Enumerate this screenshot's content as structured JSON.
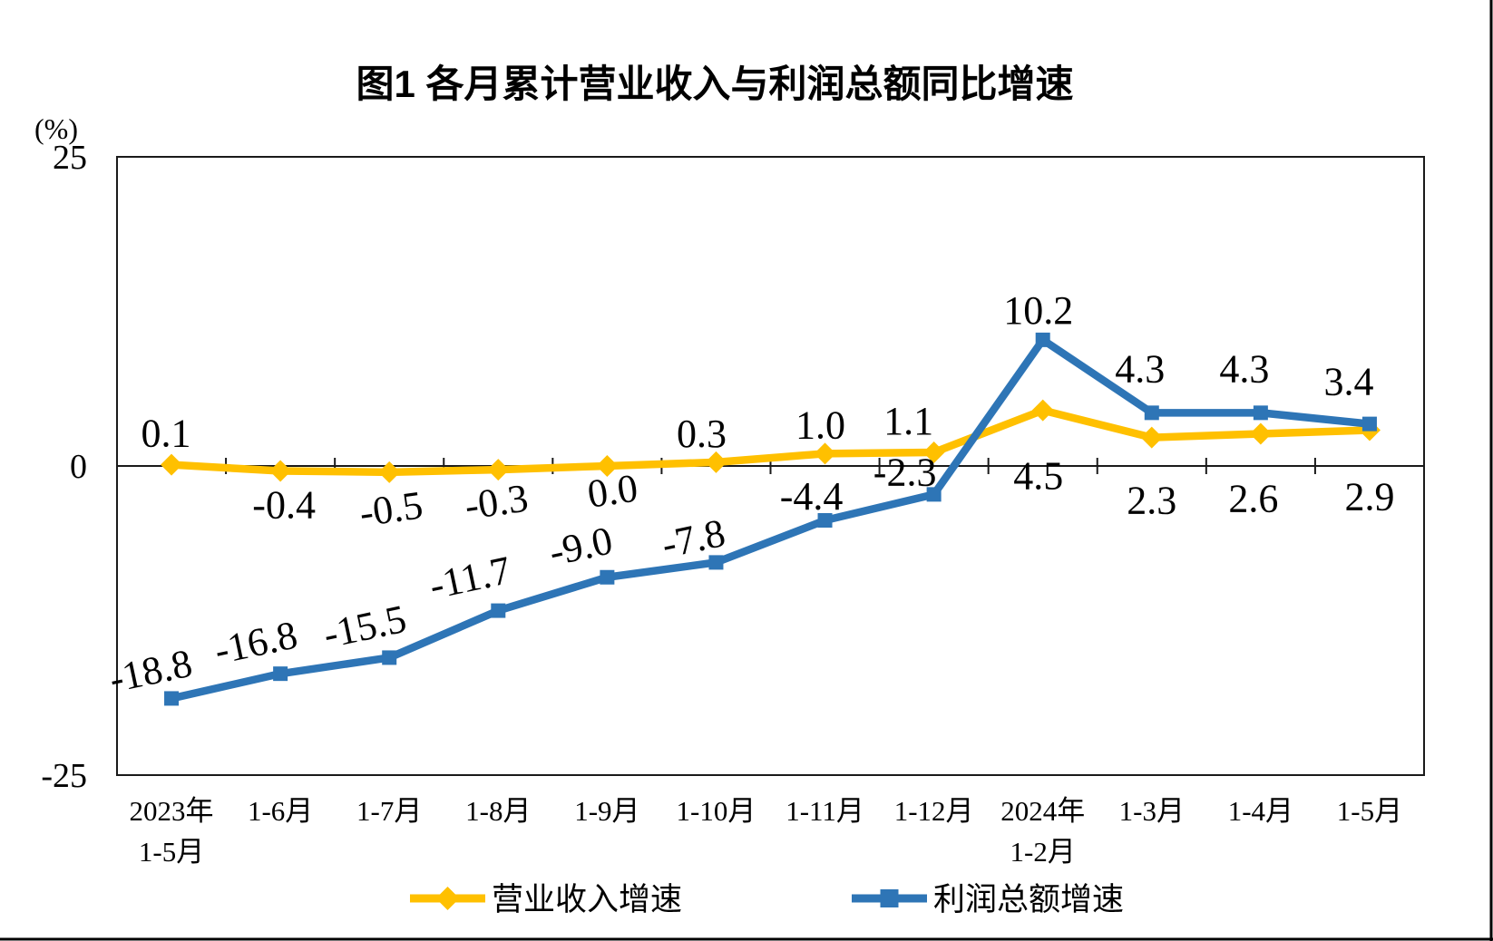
{
  "title": "图1  各月累计营业收入与利润总额同比增速",
  "axis": {
    "unit_label": "(%)",
    "y_tick_labels": [
      "25",
      "0",
      "-25"
    ]
  },
  "legend": {
    "items": [
      "营业收入增速",
      "利润总额增速"
    ]
  },
  "chart_data": {
    "type": "line",
    "title": "图1  各月累计营业收入与利润总额同比增速",
    "xlabel": "",
    "ylabel": "(%)",
    "ylim": [
      -25,
      25
    ],
    "y_ticks": [
      {
        "value": 25,
        "label": "25"
      },
      {
        "value": 0,
        "label": "0"
      },
      {
        "value": -25,
        "label": "-25"
      }
    ],
    "grid": false,
    "legend_position": "bottom",
    "categories": [
      [
        "2023年",
        "1-5月"
      ],
      [
        "1-6月"
      ],
      [
        "1-7月"
      ],
      [
        "1-8月"
      ],
      [
        "1-9月"
      ],
      [
        "1-10月"
      ],
      [
        "1-11月"
      ],
      [
        "1-12月"
      ],
      [
        "2024年",
        "1-2月"
      ],
      [
        "1-3月"
      ],
      [
        "1-4月"
      ],
      [
        "1-5月"
      ]
    ],
    "series": [
      {
        "name": "营业收入增速",
        "color": "#FFC000",
        "marker": "diamond",
        "values": [
          0.1,
          -0.4,
          -0.5,
          -0.3,
          0.0,
          0.3,
          1.0,
          1.1,
          4.5,
          2.3,
          2.6,
          2.9
        ],
        "labels": [
          "0.1",
          "-0.4",
          "-0.5",
          "-0.3",
          "0.0",
          "0.3",
          "1.0",
          "1.1",
          "4.5",
          "2.3",
          "2.6",
          "2.9"
        ]
      },
      {
        "name": "利润总额增速",
        "color": "#2E75B6",
        "marker": "square",
        "values": [
          -18.8,
          -16.8,
          -15.5,
          -11.7,
          -9.0,
          -7.8,
          -4.4,
          -2.3,
          10.2,
          4.3,
          4.3,
          3.4
        ],
        "labels": [
          "-18.8",
          "-16.8",
          "-15.5",
          "-11.7",
          "-9.0",
          "-7.8",
          "-4.4",
          "-2.3",
          "10.2",
          "4.3",
          "4.3",
          "3.4"
        ]
      }
    ]
  }
}
